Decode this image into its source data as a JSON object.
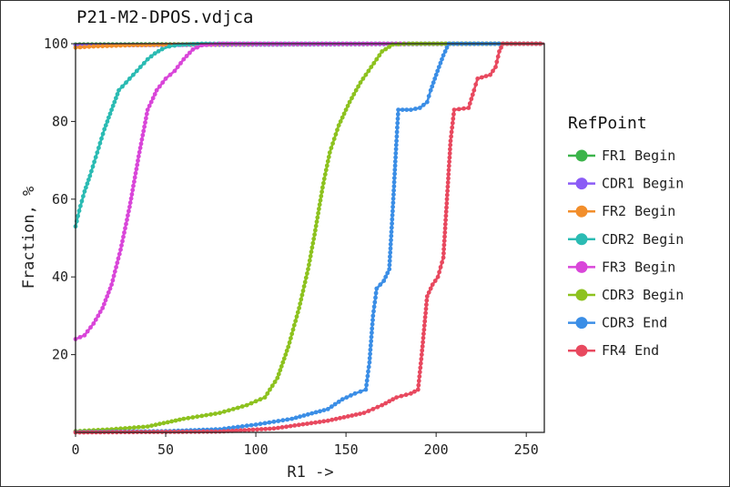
{
  "chart_data": {
    "type": "line",
    "title": "P21-M2-DPOS.vdjca",
    "xlabel": "R1 ->",
    "ylabel": "Fraction, %",
    "xlim": [
      0,
      260
    ],
    "ylim": [
      0,
      100
    ],
    "xticks": [
      0,
      50,
      100,
      150,
      200,
      250
    ],
    "yticks": [
      20,
      40,
      60,
      80,
      100
    ],
    "grid": false,
    "legend_title": "RefPoint",
    "legend_position": "right",
    "series": [
      {
        "name": "FR1 Begin",
        "color": "#3cb44b",
        "points": [
          [
            0,
            99.8
          ],
          [
            260,
            100
          ]
        ]
      },
      {
        "name": "CDR1 Begin",
        "color": "#8b5cf6",
        "points": [
          [
            0,
            99.6
          ],
          [
            260,
            100
          ]
        ]
      },
      {
        "name": "FR2 Begin",
        "color": "#f28e2b",
        "points": [
          [
            0,
            99.0
          ],
          [
            10,
            99.3
          ],
          [
            30,
            99.6
          ],
          [
            60,
            99.8
          ],
          [
            100,
            99.9
          ],
          [
            260,
            100
          ]
        ]
      },
      {
        "name": "CDR2 Begin",
        "color": "#2bbbb3",
        "points": [
          [
            0,
            53
          ],
          [
            2,
            57
          ],
          [
            5,
            62
          ],
          [
            8,
            66
          ],
          [
            12,
            72
          ],
          [
            16,
            78
          ],
          [
            20,
            83
          ],
          [
            24,
            88
          ],
          [
            28,
            90
          ],
          [
            32,
            92
          ],
          [
            36,
            94
          ],
          [
            40,
            96
          ],
          [
            44,
            97.5
          ],
          [
            48,
            98.6
          ],
          [
            52,
            99.3
          ],
          [
            58,
            99.7
          ],
          [
            70,
            100
          ],
          [
            260,
            100
          ]
        ]
      },
      {
        "name": "FR3 Begin",
        "color": "#d946d9",
        "points": [
          [
            0,
            24
          ],
          [
            5,
            25
          ],
          [
            10,
            28
          ],
          [
            15,
            32
          ],
          [
            20,
            38
          ],
          [
            25,
            47
          ],
          [
            30,
            58
          ],
          [
            35,
            71
          ],
          [
            40,
            83
          ],
          [
            45,
            88
          ],
          [
            50,
            91
          ],
          [
            55,
            93
          ],
          [
            60,
            96
          ],
          [
            65,
            98.5
          ],
          [
            70,
            99.6
          ],
          [
            80,
            100
          ],
          [
            260,
            100
          ]
        ]
      },
      {
        "name": "CDR3 Begin",
        "color": "#8dc21f",
        "points": [
          [
            0,
            0.3
          ],
          [
            20,
            0.8
          ],
          [
            40,
            1.5
          ],
          [
            60,
            3.5
          ],
          [
            80,
            5
          ],
          [
            95,
            7
          ],
          [
            105,
            9
          ],
          [
            112,
            14
          ],
          [
            118,
            22
          ],
          [
            124,
            32
          ],
          [
            129,
            42
          ],
          [
            133,
            52
          ],
          [
            137,
            63
          ],
          [
            141,
            72
          ],
          [
            146,
            79
          ],
          [
            152,
            85
          ],
          [
            158,
            90
          ],
          [
            164,
            94
          ],
          [
            170,
            98
          ],
          [
            176,
            99.8
          ],
          [
            185,
            100
          ],
          [
            260,
            100
          ]
        ]
      },
      {
        "name": "CDR3 End",
        "color": "#3b8ee6",
        "points": [
          [
            0,
            0.1
          ],
          [
            50,
            0.3
          ],
          [
            80,
            0.8
          ],
          [
            100,
            2
          ],
          [
            120,
            3.5
          ],
          [
            140,
            6
          ],
          [
            148,
            8.5
          ],
          [
            155,
            10
          ],
          [
            161,
            11
          ],
          [
            163,
            18
          ],
          [
            165,
            30
          ],
          [
            167,
            37
          ],
          [
            171,
            39
          ],
          [
            174,
            42
          ],
          [
            176,
            58
          ],
          [
            178,
            75
          ],
          [
            179,
            83
          ],
          [
            186,
            83
          ],
          [
            191,
            83.5
          ],
          [
            195,
            85
          ],
          [
            197,
            88
          ],
          [
            200,
            92
          ],
          [
            204,
            97
          ],
          [
            207,
            100
          ],
          [
            260,
            100
          ]
        ]
      },
      {
        "name": "FR4 End",
        "color": "#e8495f",
        "points": [
          [
            0,
            0
          ],
          [
            80,
            0.2
          ],
          [
            110,
            1
          ],
          [
            140,
            3
          ],
          [
            160,
            5
          ],
          [
            170,
            7
          ],
          [
            178,
            9
          ],
          [
            186,
            10
          ],
          [
            190,
            11
          ],
          [
            192,
            20
          ],
          [
            195,
            35
          ],
          [
            198,
            38
          ],
          [
            201,
            40
          ],
          [
            204,
            45
          ],
          [
            206,
            60
          ],
          [
            208,
            75
          ],
          [
            210,
            83
          ],
          [
            218,
            83.5
          ],
          [
            221,
            88
          ],
          [
            223,
            91
          ],
          [
            230,
            92
          ],
          [
            233,
            94
          ],
          [
            235,
            98
          ],
          [
            237,
            100
          ],
          [
            260,
            100
          ]
        ]
      }
    ]
  }
}
